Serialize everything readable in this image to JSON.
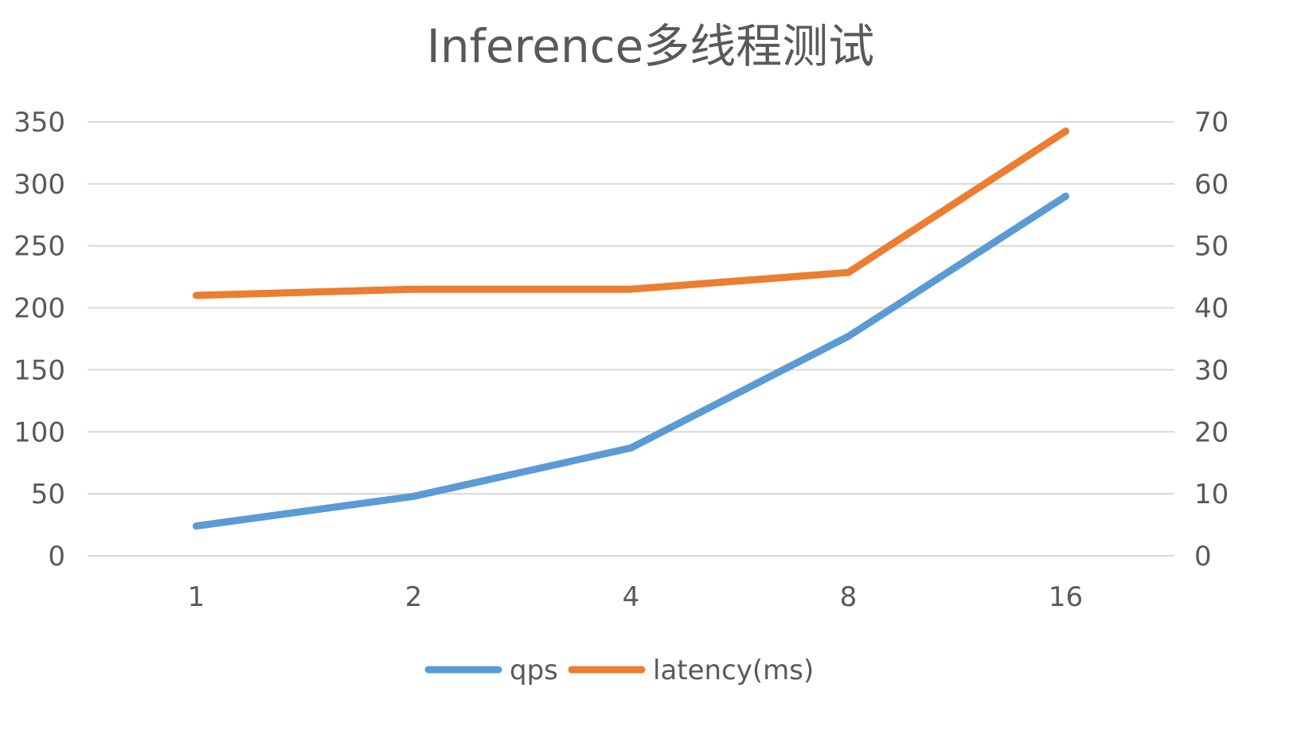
{
  "chart_data": {
    "type": "line",
    "title": "Inference多线程测试",
    "categories": [
      "1",
      "2",
      "4",
      "8",
      "16"
    ],
    "series": [
      {
        "name": "qps",
        "axis": "left",
        "color": "#5B9BD5",
        "values": [
          24,
          48,
          87,
          177,
          290
        ]
      },
      {
        "name": "latency(ms)",
        "axis": "right",
        "color": "#ED7D31",
        "values": [
          42,
          43,
          43,
          45.7,
          68.5
        ]
      }
    ],
    "y_left": {
      "min": 0,
      "max": 350,
      "ticks": [
        "0",
        "50",
        "100",
        "150",
        "200",
        "250",
        "300",
        "350"
      ]
    },
    "y_right": {
      "min": 0,
      "max": 70,
      "ticks": [
        "0",
        "10",
        "20",
        "30",
        "40",
        "50",
        "60",
        "70"
      ]
    },
    "grid": true,
    "gridline_color": "#D9D9D9",
    "legend_position": "bottom"
  }
}
